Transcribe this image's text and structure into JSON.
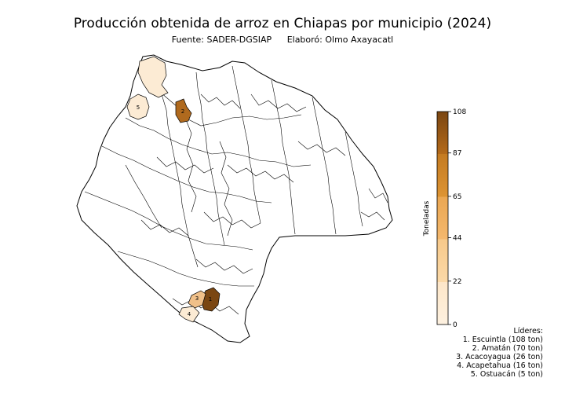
{
  "title": "Producción obtenida de arroz en Chiapas por municipio (2024)",
  "source": "Fuente: SADER-DGSIAP",
  "author": "Elaboró: Olmo Axayacatl",
  "colorbar": {
    "label": "Toneladas",
    "min": 0,
    "max": 108,
    "ticks": [
      "0",
      "22",
      "44",
      "65",
      "87",
      "108"
    ],
    "colors": [
      "#fdf1e0",
      "#fbd9a8",
      "#f4b86e",
      "#dd9433",
      "#b46a1a",
      "#7a4612"
    ]
  },
  "leaders": {
    "heading": "Líderes:",
    "items": [
      {
        "rank": "1",
        "text": "1. Escuintla (108 ton)",
        "value": 108
      },
      {
        "rank": "2",
        "text": "2. Amatán (70 ton)",
        "value": 70
      },
      {
        "rank": "3",
        "text": "3. Acacoyagua (26 ton)",
        "value": 26
      },
      {
        "rank": "4",
        "text": "4. Acapetahua (16 ton)",
        "value": 16
      },
      {
        "rank": "5",
        "text": "5. Ostuacán (5 ton)",
        "value": 5
      }
    ]
  },
  "colors": {
    "outline": "#000000",
    "highlight_low": "#fcebd4",
    "highlight_mid": "#f0c089",
    "highlight_high": "#b06a1e",
    "highlight_top": "#7a4612"
  }
}
